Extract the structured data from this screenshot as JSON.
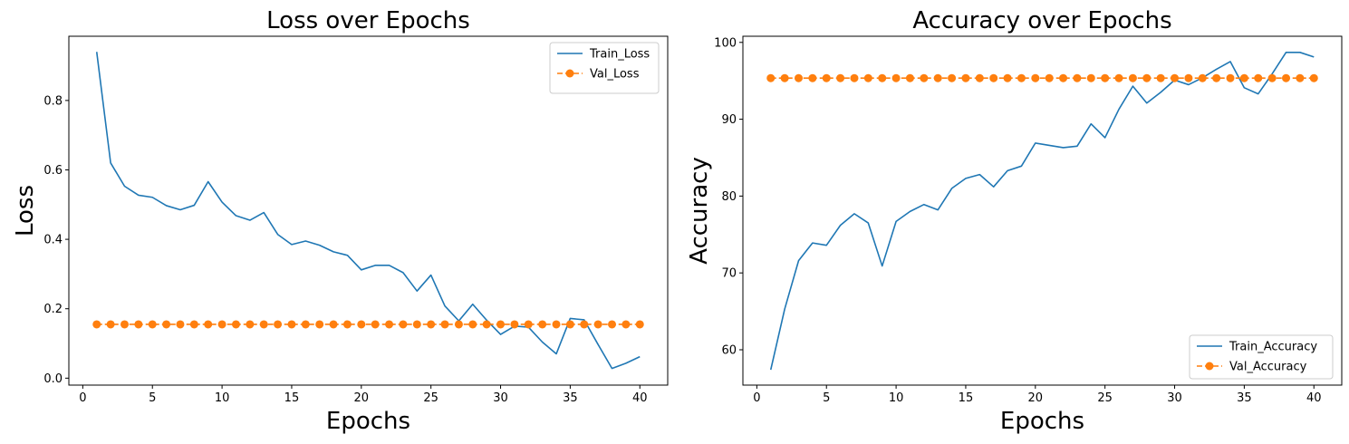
{
  "chart_data": [
    {
      "type": "line",
      "title": "Loss over Epochs",
      "xlabel": "Epochs",
      "ylabel": "Loss",
      "xlim": [
        -1,
        42
      ],
      "ylim": [
        -0.02,
        0.985
      ],
      "xticks": [
        0,
        5,
        10,
        15,
        20,
        25,
        30,
        35,
        40
      ],
      "xtick_labels": [
        "0",
        "5",
        "10",
        "15",
        "20",
        "25",
        "30",
        "35",
        "40"
      ],
      "yticks": [
        0.0,
        0.2,
        0.4,
        0.6,
        0.8
      ],
      "ytick_labels": [
        "0.0",
        "0.2",
        "0.4",
        "0.6",
        "0.8"
      ],
      "legend_position": "top-right",
      "x": [
        1,
        2,
        3,
        4,
        5,
        6,
        7,
        8,
        9,
        10,
        11,
        12,
        13,
        14,
        15,
        16,
        17,
        18,
        19,
        20,
        21,
        22,
        23,
        24,
        25,
        26,
        27,
        28,
        29,
        30,
        31,
        32,
        33,
        34,
        35,
        36,
        37,
        38,
        39,
        40
      ],
      "series": [
        {
          "name": "Train_Loss",
          "color": "#1f77b4",
          "style": "solid",
          "marker": "none",
          "values": [
            0.94,
            0.62,
            0.553,
            0.527,
            0.521,
            0.497,
            0.485,
            0.498,
            0.566,
            0.507,
            0.468,
            0.455,
            0.477,
            0.414,
            0.385,
            0.395,
            0.383,
            0.364,
            0.354,
            0.312,
            0.325,
            0.325,
            0.304,
            0.251,
            0.297,
            0.208,
            0.165,
            0.213,
            0.167,
            0.126,
            0.15,
            0.147,
            0.104,
            0.07,
            0.172,
            0.168,
            0.097,
            0.028,
            0.043,
            0.062
          ]
        },
        {
          "name": "Val_Loss",
          "color": "#ff7f0e",
          "style": "dashed",
          "marker": "circle",
          "values": [
            0.155,
            0.155,
            0.155,
            0.155,
            0.155,
            0.155,
            0.155,
            0.155,
            0.155,
            0.155,
            0.155,
            0.155,
            0.155,
            0.155,
            0.155,
            0.155,
            0.155,
            0.155,
            0.155,
            0.155,
            0.155,
            0.155,
            0.155,
            0.155,
            0.155,
            0.155,
            0.155,
            0.155,
            0.155,
            0.155,
            0.155,
            0.155,
            0.155,
            0.155,
            0.155,
            0.155,
            0.155,
            0.155,
            0.155,
            0.155
          ]
        }
      ]
    },
    {
      "type": "line",
      "title": "Accuracy over Epochs",
      "xlabel": "Epochs",
      "ylabel": "Accuracy",
      "xlim": [
        -1,
        42
      ],
      "ylim": [
        55.4,
        100.8
      ],
      "xticks": [
        0,
        5,
        10,
        15,
        20,
        25,
        30,
        35,
        40
      ],
      "xtick_labels": [
        "0",
        "5",
        "10",
        "15",
        "20",
        "25",
        "30",
        "35",
        "40"
      ],
      "yticks": [
        60,
        70,
        80,
        90,
        100
      ],
      "ytick_labels": [
        "60",
        "70",
        "80",
        "90",
        "100"
      ],
      "legend_position": "bottom-right",
      "x": [
        1,
        2,
        3,
        4,
        5,
        6,
        7,
        8,
        9,
        10,
        11,
        12,
        13,
        14,
        15,
        16,
        17,
        18,
        19,
        20,
        21,
        22,
        23,
        24,
        25,
        26,
        27,
        28,
        29,
        30,
        31,
        32,
        33,
        34,
        35,
        36,
        37,
        38,
        39,
        40
      ],
      "series": [
        {
          "name": "Train_Accuracy",
          "color": "#1f77b4",
          "style": "solid",
          "marker": "none",
          "values": [
            57.4,
            65.3,
            71.6,
            73.9,
            73.6,
            76.2,
            77.7,
            76.5,
            70.9,
            76.7,
            78.0,
            78.9,
            78.2,
            81.0,
            82.3,
            82.8,
            81.2,
            83.3,
            83.9,
            86.9,
            86.6,
            86.3,
            86.5,
            89.4,
            87.6,
            91.3,
            94.3,
            92.1,
            93.5,
            95.1,
            94.5,
            95.4,
            96.5,
            97.5,
            94.1,
            93.3,
            95.9,
            98.7,
            98.7,
            98.1
          ]
        },
        {
          "name": "Val_Accuracy",
          "color": "#ff7f0e",
          "style": "dashed",
          "marker": "circle",
          "values": [
            95.35,
            95.35,
            95.35,
            95.35,
            95.35,
            95.35,
            95.35,
            95.35,
            95.35,
            95.35,
            95.35,
            95.35,
            95.35,
            95.35,
            95.35,
            95.35,
            95.35,
            95.35,
            95.35,
            95.35,
            95.35,
            95.35,
            95.35,
            95.35,
            95.35,
            95.35,
            95.35,
            95.35,
            95.35,
            95.35,
            95.35,
            95.35,
            95.35,
            95.35,
            95.35,
            95.35,
            95.35,
            95.35,
            95.35,
            95.35
          ]
        }
      ]
    }
  ]
}
